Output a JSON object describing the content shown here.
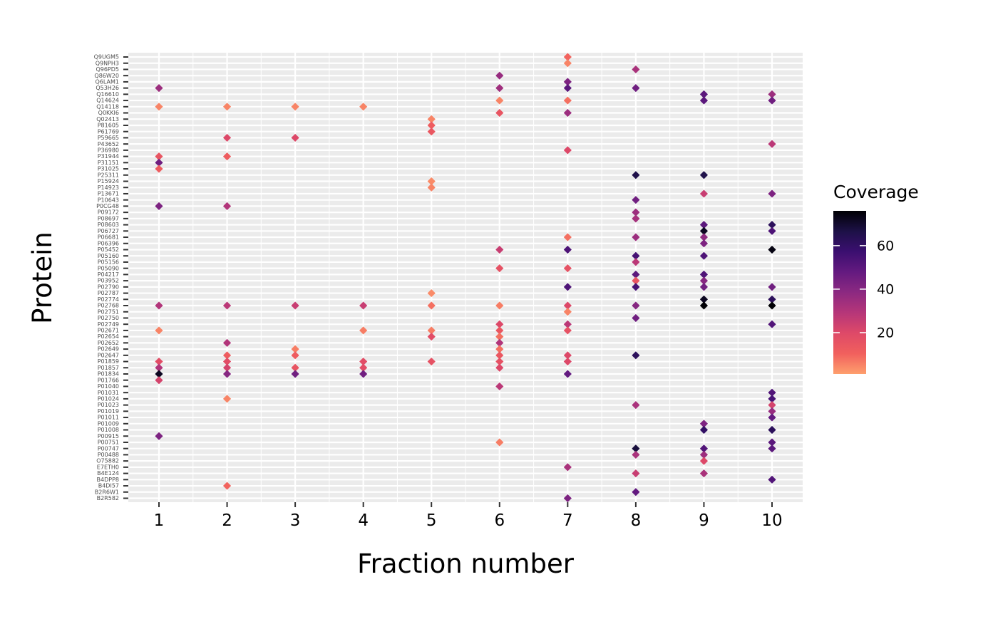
{
  "chart_data": {
    "type": "scatter",
    "xlabel": "Fraction number",
    "ylabel": "Protein",
    "x_ticks": [
      1,
      2,
      3,
      4,
      5,
      6,
      7,
      8,
      9,
      10
    ],
    "x_tick_labels": [
      "1",
      "2",
      "3",
      "4",
      "5",
      "6",
      "7",
      "8",
      "9",
      "10"
    ],
    "xlim": [
      0.55,
      10.45
    ],
    "proteins": [
      "Q9UGM5",
      "Q9NPH3",
      "Q96PD5",
      "Q86W20",
      "Q6LAM1",
      "Q53H26",
      "Q16610",
      "Q14624",
      "Q14118",
      "Q0KKI6",
      "Q02413",
      "P81605",
      "P61769",
      "P59665",
      "P43652",
      "P36980",
      "P31944",
      "P31151",
      "P31025",
      "P25311",
      "P15924",
      "P14923",
      "P13671",
      "P10643",
      "P0CG48",
      "P09172",
      "P08697",
      "P08603",
      "P06727",
      "P06681",
      "P06396",
      "P05452",
      "P05160",
      "P05156",
      "P05090",
      "P04217",
      "P03952",
      "P02790",
      "P02787",
      "P02774",
      "P02768",
      "P02751",
      "P02750",
      "P02749",
      "P02671",
      "P02654",
      "P02652",
      "P02649",
      "P02647",
      "P01859",
      "P01857",
      "P01834",
      "P01766",
      "P01040",
      "P01031",
      "P01024",
      "P01023",
      "P01019",
      "P01011",
      "P01009",
      "P01008",
      "P00915",
      "P00751",
      "P00747",
      "P00488",
      "O75882",
      "E7ETH0",
      "B4E124",
      "B4DPP8",
      "B4DI57",
      "B2R6W1",
      "B2R582"
    ],
    "legend": {
      "title": "Coverage",
      "ticks": [
        20,
        40,
        60
      ],
      "range": [
        1,
        76
      ],
      "placement": "right"
    },
    "colormap": [
      "#FE9F6D",
      "#F1605D",
      "#DE4968",
      "#B63679",
      "#8C2981",
      "#641A80",
      "#3B0F70",
      "#1D1147",
      "#000004"
    ],
    "grid": true,
    "points": [
      {
        "protein": "Q9UGM5",
        "x": 7,
        "coverage": 10
      },
      {
        "protein": "Q9NPH3",
        "x": 7,
        "coverage": 5
      },
      {
        "protein": "Q96PD5",
        "x": 8,
        "coverage": 32
      },
      {
        "protein": "Q86W20",
        "x": 6,
        "coverage": 36
      },
      {
        "protein": "Q6LAM1",
        "x": 7,
        "coverage": 42
      },
      {
        "protein": "Q53H26",
        "x": 1,
        "coverage": 35
      },
      {
        "protein": "Q53H26",
        "x": 6,
        "coverage": 34
      },
      {
        "protein": "Q53H26",
        "x": 7,
        "coverage": 50
      },
      {
        "protein": "Q53H26",
        "x": 8,
        "coverage": 45
      },
      {
        "protein": "Q16610",
        "x": 9,
        "coverage": 50
      },
      {
        "protein": "Q16610",
        "x": 10,
        "coverage": 35
      },
      {
        "protein": "Q14624",
        "x": 6,
        "coverage": 5
      },
      {
        "protein": "Q14624",
        "x": 7,
        "coverage": 8
      },
      {
        "protein": "Q14624",
        "x": 9,
        "coverage": 50
      },
      {
        "protein": "Q14624",
        "x": 10,
        "coverage": 45
      },
      {
        "protein": "Q14118",
        "x": 1,
        "coverage": 5
      },
      {
        "protein": "Q14118",
        "x": 2,
        "coverage": 5
      },
      {
        "protein": "Q14118",
        "x": 3,
        "coverage": 5
      },
      {
        "protein": "Q14118",
        "x": 4,
        "coverage": 5
      },
      {
        "protein": "Q0KKI6",
        "x": 6,
        "coverage": 15
      },
      {
        "protein": "Q0KKI6",
        "x": 7,
        "coverage": 35
      },
      {
        "protein": "Q02413",
        "x": 5,
        "coverage": 5
      },
      {
        "protein": "P81605",
        "x": 5,
        "coverage": 12
      },
      {
        "protein": "P61769",
        "x": 5,
        "coverage": 14
      },
      {
        "protein": "P59665",
        "x": 2,
        "coverage": 20
      },
      {
        "protein": "P59665",
        "x": 3,
        "coverage": 20
      },
      {
        "protein": "P43652",
        "x": 10,
        "coverage": 28
      },
      {
        "protein": "P36980",
        "x": 7,
        "coverage": 20
      },
      {
        "protein": "P31944",
        "x": 1,
        "coverage": 15
      },
      {
        "protein": "P31944",
        "x": 2,
        "coverage": 12
      },
      {
        "protein": "P31151",
        "x": 1,
        "coverage": 45
      },
      {
        "protein": "P31025",
        "x": 1,
        "coverage": 12
      },
      {
        "protein": "P25311",
        "x": 8,
        "coverage": 66
      },
      {
        "protein": "P25311",
        "x": 9,
        "coverage": 66
      },
      {
        "protein": "P15924",
        "x": 5,
        "coverage": 4
      },
      {
        "protein": "P14923",
        "x": 5,
        "coverage": 5
      },
      {
        "protein": "P13671",
        "x": 9,
        "coverage": 25
      },
      {
        "protein": "P13671",
        "x": 10,
        "coverage": 42
      },
      {
        "protein": "P10643",
        "x": 8,
        "coverage": 45
      },
      {
        "protein": "P0CG48",
        "x": 1,
        "coverage": 42
      },
      {
        "protein": "P0CG48",
        "x": 2,
        "coverage": 30
      },
      {
        "protein": "P09172",
        "x": 8,
        "coverage": 35
      },
      {
        "protein": "P08697",
        "x": 8,
        "coverage": 33
      },
      {
        "protein": "P08603",
        "x": 9,
        "coverage": 50
      },
      {
        "protein": "P08603",
        "x": 10,
        "coverage": 62
      },
      {
        "protein": "P06727",
        "x": 9,
        "coverage": 72
      },
      {
        "protein": "P06727",
        "x": 10,
        "coverage": 53
      },
      {
        "protein": "P06681",
        "x": 7,
        "coverage": 8
      },
      {
        "protein": "P06681",
        "x": 8,
        "coverage": 35
      },
      {
        "protein": "P06681",
        "x": 9,
        "coverage": 38
      },
      {
        "protein": "P06396",
        "x": 9,
        "coverage": 42
      },
      {
        "protein": "P05452",
        "x": 6,
        "coverage": 25
      },
      {
        "protein": "P05452",
        "x": 7,
        "coverage": 53
      },
      {
        "protein": "P05452",
        "x": 10,
        "coverage": 74
      },
      {
        "protein": "P05160",
        "x": 8,
        "coverage": 55
      },
      {
        "protein": "P05160",
        "x": 9,
        "coverage": 53
      },
      {
        "protein": "P05156",
        "x": 8,
        "coverage": 28
      },
      {
        "protein": "P05090",
        "x": 6,
        "coverage": 16
      },
      {
        "protein": "P05090",
        "x": 7,
        "coverage": 16
      },
      {
        "protein": "P04217",
        "x": 8,
        "coverage": 50
      },
      {
        "protein": "P04217",
        "x": 9,
        "coverage": 53
      },
      {
        "protein": "P03952",
        "x": 8,
        "coverage": 15
      },
      {
        "protein": "P03952",
        "x": 9,
        "coverage": 40
      },
      {
        "protein": "P02790",
        "x": 7,
        "coverage": 53
      },
      {
        "protein": "P02790",
        "x": 8,
        "coverage": 55
      },
      {
        "protein": "P02790",
        "x": 9,
        "coverage": 45
      },
      {
        "protein": "P02790",
        "x": 10,
        "coverage": 45
      },
      {
        "protein": "P02787",
        "x": 5,
        "coverage": 4
      },
      {
        "protein": "P02774",
        "x": 9,
        "coverage": 72
      },
      {
        "protein": "P02774",
        "x": 10,
        "coverage": 62
      },
      {
        "protein": "P02768",
        "x": 1,
        "coverage": 30
      },
      {
        "protein": "P02768",
        "x": 2,
        "coverage": 28
      },
      {
        "protein": "P02768",
        "x": 3,
        "coverage": 25
      },
      {
        "protein": "P02768",
        "x": 4,
        "coverage": 25
      },
      {
        "protein": "P02768",
        "x": 5,
        "coverage": 8
      },
      {
        "protein": "P02768",
        "x": 6,
        "coverage": 6
      },
      {
        "protein": "P02768",
        "x": 7,
        "coverage": 20
      },
      {
        "protein": "P02768",
        "x": 8,
        "coverage": 40
      },
      {
        "protein": "P02768",
        "x": 9,
        "coverage": 76
      },
      {
        "protein": "P02768",
        "x": 10,
        "coverage": 76
      },
      {
        "protein": "P02751",
        "x": 7,
        "coverage": 5
      },
      {
        "protein": "P02750",
        "x": 8,
        "coverage": 45
      },
      {
        "protein": "P02749",
        "x": 6,
        "coverage": 20
      },
      {
        "protein": "P02749",
        "x": 7,
        "coverage": 28
      },
      {
        "protein": "P02749",
        "x": 10,
        "coverage": 52
      },
      {
        "protein": "P02671",
        "x": 1,
        "coverage": 5
      },
      {
        "protein": "P02671",
        "x": 4,
        "coverage": 6
      },
      {
        "protein": "P02671",
        "x": 5,
        "coverage": 6
      },
      {
        "protein": "P02671",
        "x": 6,
        "coverage": 14
      },
      {
        "protein": "P02671",
        "x": 7,
        "coverage": 16
      },
      {
        "protein": "P02654",
        "x": 5,
        "coverage": 18
      },
      {
        "protein": "P02654",
        "x": 6,
        "coverage": 8
      },
      {
        "protein": "P02652",
        "x": 2,
        "coverage": 30
      },
      {
        "protein": "P02652",
        "x": 6,
        "coverage": 30
      },
      {
        "protein": "P02649",
        "x": 3,
        "coverage": 6
      },
      {
        "protein": "P02649",
        "x": 6,
        "coverage": 8
      },
      {
        "protein": "P02647",
        "x": 2,
        "coverage": 12
      },
      {
        "protein": "P02647",
        "x": 3,
        "coverage": 12
      },
      {
        "protein": "P02647",
        "x": 6,
        "coverage": 14
      },
      {
        "protein": "P02647",
        "x": 7,
        "coverage": 20
      },
      {
        "protein": "P02647",
        "x": 8,
        "coverage": 62
      },
      {
        "protein": "P01859",
        "x": 1,
        "coverage": 18
      },
      {
        "protein": "P01859",
        "x": 2,
        "coverage": 18
      },
      {
        "protein": "P01859",
        "x": 4,
        "coverage": 18
      },
      {
        "protein": "P01859",
        "x": 5,
        "coverage": 16
      },
      {
        "protein": "P01859",
        "x": 6,
        "coverage": 16
      },
      {
        "protein": "P01859",
        "x": 7,
        "coverage": 20
      },
      {
        "protein": "P01857",
        "x": 1,
        "coverage": 30
      },
      {
        "protein": "P01857",
        "x": 2,
        "coverage": 22
      },
      {
        "protein": "P01857",
        "x": 3,
        "coverage": 15
      },
      {
        "protein": "P01857",
        "x": 4,
        "coverage": 18
      },
      {
        "protein": "P01857",
        "x": 6,
        "coverage": 20
      },
      {
        "protein": "P01834",
        "x": 1,
        "coverage": 72
      },
      {
        "protein": "P01834",
        "x": 2,
        "coverage": 40
      },
      {
        "protein": "P01834",
        "x": 3,
        "coverage": 45
      },
      {
        "protein": "P01834",
        "x": 4,
        "coverage": 45
      },
      {
        "protein": "P01834",
        "x": 7,
        "coverage": 48
      },
      {
        "protein": "P01766",
        "x": 1,
        "coverage": 22
      },
      {
        "protein": "P01040",
        "x": 6,
        "coverage": 28
      },
      {
        "protein": "P01031",
        "x": 10,
        "coverage": 52
      },
      {
        "protein": "P01024",
        "x": 2,
        "coverage": 5
      },
      {
        "protein": "P01024",
        "x": 10,
        "coverage": 54
      },
      {
        "protein": "P01023",
        "x": 8,
        "coverage": 32
      },
      {
        "protein": "P01023",
        "x": 10,
        "coverage": 22
      },
      {
        "protein": "P01019",
        "x": 10,
        "coverage": 36
      },
      {
        "protein": "P01011",
        "x": 10,
        "coverage": 48
      },
      {
        "protein": "P01009",
        "x": 9,
        "coverage": 42
      },
      {
        "protein": "P01008",
        "x": 9,
        "coverage": 60
      },
      {
        "protein": "P01008",
        "x": 10,
        "coverage": 62
      },
      {
        "protein": "P00915",
        "x": 1,
        "coverage": 42
      },
      {
        "protein": "P00751",
        "x": 6,
        "coverage": 6
      },
      {
        "protein": "P00751",
        "x": 10,
        "coverage": 50
      },
      {
        "protein": "P00747",
        "x": 8,
        "coverage": 68
      },
      {
        "protein": "P00747",
        "x": 9,
        "coverage": 52
      },
      {
        "protein": "P00747",
        "x": 10,
        "coverage": 50
      },
      {
        "protein": "P00488",
        "x": 8,
        "coverage": 32
      },
      {
        "protein": "P00488",
        "x": 9,
        "coverage": 35
      },
      {
        "protein": "O75882",
        "x": 9,
        "coverage": 20
      },
      {
        "protein": "E7ETH0",
        "x": 7,
        "coverage": 32
      },
      {
        "protein": "B4E124",
        "x": 8,
        "coverage": 25
      },
      {
        "protein": "B4E124",
        "x": 9,
        "coverage": 32
      },
      {
        "protein": "B4DPP8",
        "x": 10,
        "coverage": 52
      },
      {
        "protein": "B4DI57",
        "x": 2,
        "coverage": 10
      },
      {
        "protein": "B2R6W1",
        "x": 8,
        "coverage": 48
      },
      {
        "protein": "B2R582",
        "x": 7,
        "coverage": 42
      }
    ]
  }
}
